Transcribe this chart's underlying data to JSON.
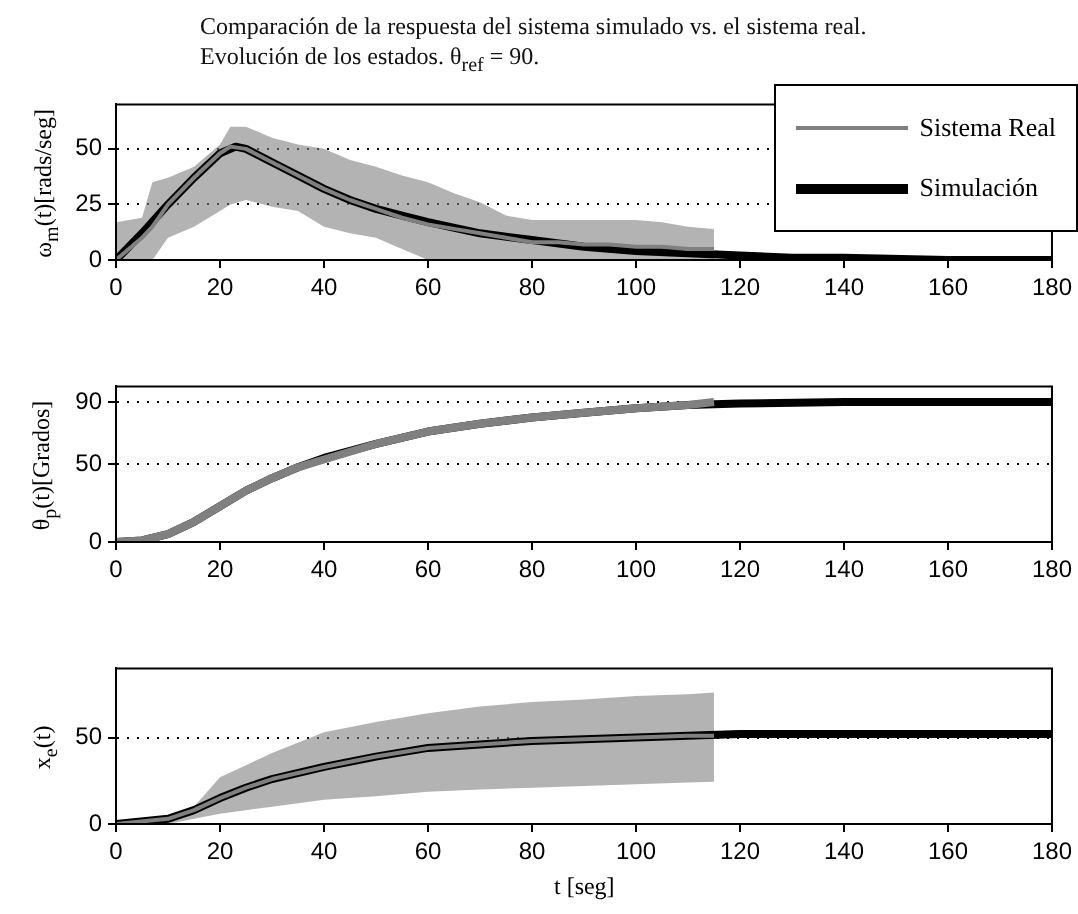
{
  "chart_data": [
    {
      "type": "line",
      "title": "Comparación de la respuesta del sistema simulado vs. el sistema real.",
      "subtitle": "Evolución de los estados. θ$_{ref}$ = 90.",
      "ylabel": "ω$_{m}$(t)[rads/seg]",
      "xlim": [
        0,
        180
      ],
      "xticks": [
        0,
        20,
        40,
        60,
        80,
        100,
        120,
        140,
        160,
        180
      ],
      "ylim": [
        0,
        70
      ],
      "yticks": [
        0,
        25,
        50
      ],
      "grid": "y",
      "legend": "top right",
      "series": [
        {
          "name": "Sistema Real",
          "color": "#808080",
          "x": [
            0,
            5,
            7,
            10,
            15,
            20,
            22,
            25,
            30,
            35,
            40,
            45,
            50,
            55,
            60,
            65,
            70,
            75,
            80,
            85,
            90,
            95,
            100,
            105,
            110,
            115
          ],
          "values": [
            0,
            10,
            15,
            25,
            37,
            48,
            51,
            50,
            44,
            38,
            32,
            27,
            23,
            19,
            16,
            14,
            12,
            10,
            8,
            8,
            7,
            7,
            6,
            6,
            5,
            5
          ],
          "lower": [
            0,
            0,
            0,
            10,
            15,
            22,
            25,
            27,
            24,
            22,
            15,
            12,
            10,
            5,
            0,
            0,
            0,
            0,
            0,
            0,
            0,
            0,
            0,
            0,
            0,
            0
          ],
          "upper": [
            17,
            19,
            35,
            37,
            42,
            52,
            60,
            60,
            55,
            52,
            50,
            45,
            42,
            38,
            35,
            30,
            26,
            20,
            18,
            18,
            18,
            18,
            18,
            17,
            15,
            14
          ]
        },
        {
          "name": "Simulación",
          "color": "#000000",
          "x": [
            0,
            5,
            10,
            15,
            20,
            23,
            25,
            30,
            35,
            40,
            45,
            50,
            55,
            60,
            70,
            80,
            90,
            100,
            110,
            120,
            130,
            140,
            160,
            180
          ],
          "values": [
            0,
            12,
            25,
            37,
            48,
            51,
            50,
            44,
            38,
            32,
            27,
            23,
            20,
            17,
            12,
            9,
            6,
            4,
            3,
            2,
            1,
            1,
            0,
            0
          ]
        }
      ]
    },
    {
      "type": "line",
      "ylabel": "θ$_{p}$(t)[Grados]",
      "xlim": [
        0,
        180
      ],
      "xticks": [
        0,
        20,
        40,
        60,
        80,
        100,
        120,
        140,
        160,
        180
      ],
      "ylim": [
        0,
        100
      ],
      "yticks": [
        0,
        50,
        90
      ],
      "grid": "y",
      "series": [
        {
          "color": "#808080",
          "x": [
            0,
            5,
            10,
            15,
            20,
            25,
            30,
            35,
            40,
            50,
            60,
            70,
            80,
            90,
            100,
            110,
            115
          ],
          "values": [
            0,
            1,
            5,
            13,
            23,
            33,
            41,
            48,
            53,
            63,
            71,
            76,
            80,
            83,
            86,
            88,
            90
          ]
        },
        {
          "color": "#000000",
          "x": [
            0,
            5,
            10,
            15,
            20,
            25,
            30,
            35,
            40,
            50,
            60,
            70,
            80,
            90,
            100,
            110,
            120,
            140,
            160,
            180
          ],
          "values": [
            0,
            1,
            5,
            13,
            23,
            33,
            41,
            48,
            54,
            63,
            71,
            76,
            80,
            83,
            86,
            88,
            89,
            90,
            90,
            90
          ]
        }
      ]
    },
    {
      "type": "line",
      "ylabel": "x$_{e}$(t)",
      "xlabel": "t [seg]",
      "xlim": [
        0,
        180
      ],
      "xticks": [
        0,
        20,
        40,
        60,
        80,
        100,
        120,
        140,
        160,
        180
      ],
      "ylim": [
        0,
        90
      ],
      "yticks": [
        0,
        50
      ],
      "grid": "y",
      "series": [
        {
          "color": "#808080",
          "x": [
            0,
            10,
            15,
            20,
            25,
            30,
            40,
            50,
            60,
            70,
            80,
            90,
            100,
            110,
            115
          ],
          "values": [
            0,
            3,
            8,
            15,
            21,
            26,
            33,
            39,
            44,
            46,
            48,
            49,
            50,
            51,
            51
          ],
          "lower": [
            0,
            0,
            3,
            6,
            8,
            10,
            14,
            16,
            18.6,
            20,
            21,
            22,
            23,
            24,
            24.4
          ],
          "upper": [
            0,
            4,
            10,
            27,
            34,
            41,
            53,
            59,
            64,
            68,
            70.5,
            72,
            74,
            75,
            76
          ]
        },
        {
          "color": "#000000",
          "x": [
            0,
            10,
            15,
            20,
            25,
            30,
            40,
            50,
            60,
            70,
            80,
            90,
            100,
            110,
            120,
            140,
            180
          ],
          "values": [
            0,
            3,
            8,
            15,
            21,
            26,
            33,
            39,
            44,
            46,
            48,
            49,
            50,
            51,
            52,
            52,
            52
          ]
        }
      ]
    }
  ]
}
